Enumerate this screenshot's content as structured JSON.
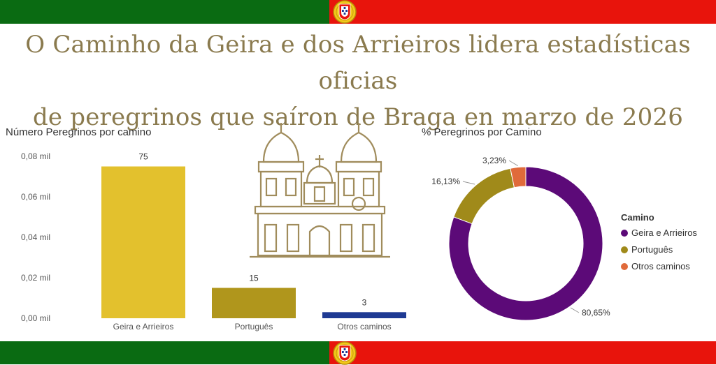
{
  "header": {
    "title_line1": "O Caminho da Geira e dos Arrieiros lidera estadísticas oficias",
    "title_line2": "de peregrinos que saíron de Braga en marzo de 2026"
  },
  "colors": {
    "flag_green": "#0a6b12",
    "flag_red": "#e8140c",
    "title": "#8a7a4e",
    "church": "#a08c5c"
  },
  "chart_data": [
    {
      "type": "bar",
      "title": "Número Peregrinos por camino",
      "categories": [
        "Geira e Arrieiros",
        "Português",
        "Otros caminos"
      ],
      "values": [
        75,
        15,
        3
      ],
      "data_labels": [
        "75",
        "15",
        "3"
      ],
      "colors": [
        "#e3c12d",
        "#b0961c",
        "#1f3a93"
      ],
      "ylim": [
        0,
        80
      ],
      "yticks": [
        0,
        20,
        40,
        60,
        80
      ],
      "ytick_labels": [
        "0,00 mil",
        "0,02 mil",
        "0,04 mil",
        "0,06 mil",
        "0,08 mil"
      ],
      "grid": false
    },
    {
      "type": "pie",
      "title": "% Peregrinos por Camino",
      "labels": [
        "Geira e Arrieiros",
        "Português",
        "Otros caminos"
      ],
      "values": [
        80.65,
        16.13,
        3.23
      ],
      "data_labels": [
        "80,65%",
        "16,13%",
        "3,23%"
      ],
      "colors": [
        "#5c0a78",
        "#a08a1a",
        "#e06a3a"
      ],
      "legend_title": "Camino",
      "legend_position": "right"
    }
  ]
}
